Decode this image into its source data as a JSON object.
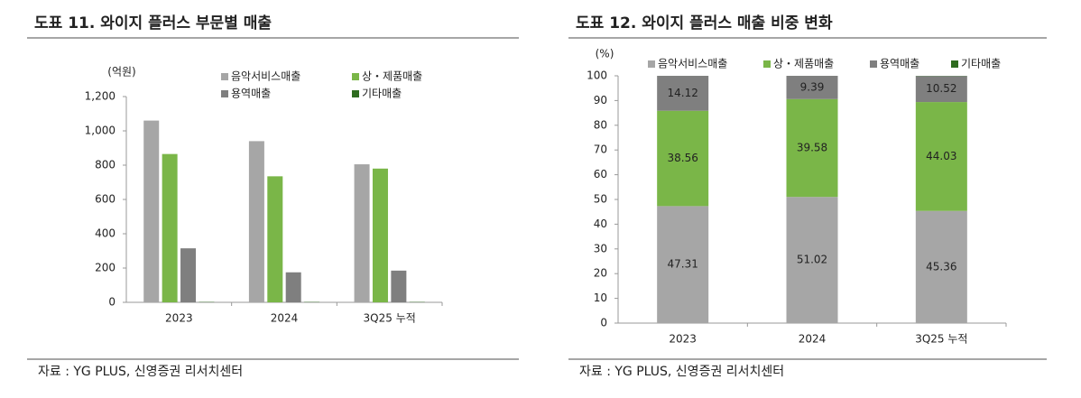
{
  "chart_data": [
    {
      "type": "bar",
      "title": "도표 11. 와이지 플러스 부문별 매출",
      "unit_label": "(억원)",
      "categories": [
        "2023",
        "2024",
        "3Q25 누적"
      ],
      "series": [
        {
          "name": "음악서비스매출",
          "color": "#a6a6a6",
          "values": [
            1060,
            940,
            805
          ]
        },
        {
          "name": "상・제품매출",
          "color": "#7ab648",
          "values": [
            865,
            735,
            780
          ]
        },
        {
          "name": "용역매출",
          "color": "#7f7f7f",
          "values": [
            315,
            175,
            185
          ]
        },
        {
          "name": "기타매출",
          "color": "#2e6b1f",
          "values": [
            2,
            2,
            2
          ]
        }
      ],
      "ylim": [
        0,
        1200
      ],
      "yticks": [
        0,
        200,
        400,
        600,
        800,
        {
          "value": 1000,
          "label": "1,000"
        },
        {
          "value": 1200,
          "label": "1,200"
        }
      ],
      "grid": false,
      "source": "자료 : YG PLUS, 신영증권 리서치센터"
    },
    {
      "type": "stacked_bar",
      "title": "도표 12. 와이지 플러스 매출 비중 변화",
      "unit_label": "(%)",
      "categories": [
        "2023",
        "2024",
        "3Q25 누적"
      ],
      "series": [
        {
          "name": "음악서비스매출",
          "color": "#a6a6a6",
          "values": [
            47.31,
            51.02,
            45.36
          ],
          "show_labels": true
        },
        {
          "name": "상・제품매출",
          "color": "#7ab648",
          "values": [
            38.56,
            39.58,
            44.03
          ],
          "show_labels": true
        },
        {
          "name": "용역매출",
          "color": "#7f7f7f",
          "values": [
            14.12,
            9.39,
            10.52
          ],
          "show_labels": true
        },
        {
          "name": "기타매출",
          "color": "#2e6b1f",
          "values": [
            0.01,
            0.01,
            0.09
          ],
          "show_labels": false
        }
      ],
      "ylim": [
        0,
        100
      ],
      "yticks": [
        0,
        10,
        20,
        30,
        40,
        50,
        60,
        70,
        80,
        90,
        100
      ],
      "grid": false,
      "source": "자료 : YG PLUS, 신영증권 리서치센터"
    }
  ]
}
